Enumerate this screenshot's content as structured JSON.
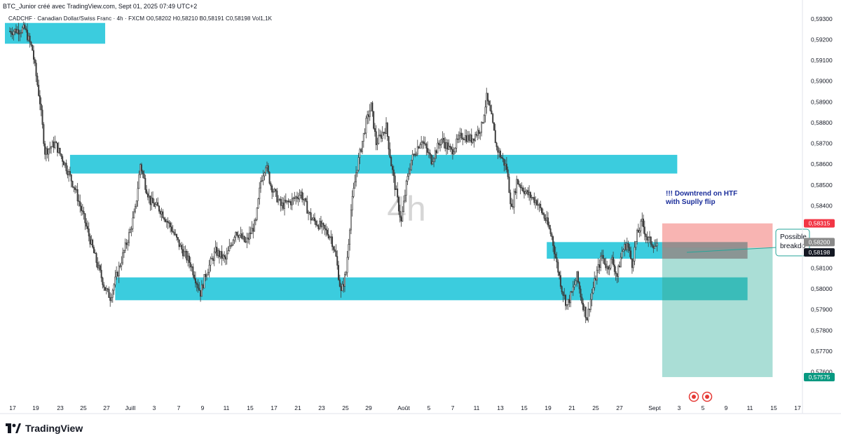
{
  "header": {
    "published_by": "BTC_Junior créé avec TradingView.com, Sept 01, 2025 07:49 UTC+2"
  },
  "legend": {
    "text": "CADCHF · Canadian Dollar/Swiss Franc · 4h · FXCM  O0,58202  H0,58210  B0,58191  C0,58198  Vol1,1K"
  },
  "watermark": {
    "text": "4h"
  },
  "brand": {
    "name": "TradingView",
    "logo_icon": "tradingview-logo-icon"
  },
  "colors": {
    "zone": "#26c6da",
    "candle": "#3a3a3a",
    "stop": "#f7a7a5",
    "target": "#9bd8cf",
    "gray_zone": "#8a8a8a",
    "annotation": "#1a2d9a",
    "price_tag_dark": "#131722",
    "price_tag_red": "#f23645",
    "price_tag_green": "#089981"
  },
  "chart_data": {
    "type": "candlestick",
    "symbol": "CADCHF",
    "name": "Canadian Dollar/Swiss Franc",
    "timeframe": "4h",
    "exchange": "FXCM",
    "last_ohlc": {
      "open": 0.58202,
      "high": 0.5821,
      "low": 0.58191,
      "close": 0.58198,
      "volume": "1,1K"
    },
    "ylim": [
      0.5745,
      0.5935
    ],
    "y_ticks": [
      "0,59300",
      "0,59200",
      "0,59100",
      "0,59000",
      "0,58900",
      "0,58800",
      "0,58700",
      "0,58600",
      "0,58500",
      "0,58400",
      "0,58100",
      "0,58000",
      "0,57900",
      "0,57800",
      "0,57700",
      "0,57600"
    ],
    "x_ticks": [
      "17",
      "19",
      "23",
      "25",
      "27",
      "Juill",
      "3",
      "7",
      "9",
      "11",
      "15",
      "17",
      "21",
      "23",
      "25",
      "29",
      "Août",
      "5",
      "7",
      "11",
      "13",
      "15",
      "19",
      "21",
      "25",
      "27",
      "Sept",
      "3",
      "5",
      "9",
      "11",
      "15",
      "17"
    ],
    "price_path": [
      [
        0,
        0.5924
      ],
      [
        3,
        0.5925
      ],
      [
        4.5,
        0.5915
      ],
      [
        6,
        0.589
      ],
      [
        7,
        0.5866
      ],
      [
        9,
        0.587
      ],
      [
        11,
        0.586
      ],
      [
        13,
        0.5848
      ],
      [
        15,
        0.5832
      ],
      [
        17,
        0.5815
      ],
      [
        19,
        0.58
      ],
      [
        20,
        0.5796
      ],
      [
        22,
        0.5812
      ],
      [
        24,
        0.5828
      ],
      [
        25,
        0.5838
      ],
      [
        26,
        0.586
      ],
      [
        27,
        0.585
      ],
      [
        28,
        0.5842
      ],
      [
        30,
        0.5838
      ],
      [
        32,
        0.583
      ],
      [
        34,
        0.582
      ],
      [
        36,
        0.5812
      ],
      [
        37,
        0.5805
      ],
      [
        38,
        0.5798
      ],
      [
        39,
        0.5807
      ],
      [
        41,
        0.5818
      ],
      [
        43,
        0.5814
      ],
      [
        45,
        0.5828
      ],
      [
        47,
        0.5822
      ],
      [
        49,
        0.5832
      ],
      [
        50,
        0.5852
      ],
      [
        51,
        0.586
      ],
      [
        52,
        0.585
      ],
      [
        54,
        0.584
      ],
      [
        56,
        0.5842
      ],
      [
        58,
        0.5846
      ],
      [
        60,
        0.5834
      ],
      [
        62,
        0.583
      ],
      [
        64,
        0.5825
      ],
      [
        65,
        0.5815
      ],
      [
        66,
        0.5798
      ],
      [
        67,
        0.5808
      ],
      [
        68,
        0.5838
      ],
      [
        69,
        0.5856
      ],
      [
        71,
        0.588
      ],
      [
        72,
        0.5888
      ],
      [
        73,
        0.587
      ],
      [
        74,
        0.5874
      ],
      [
        75,
        0.5878
      ],
      [
        76,
        0.586
      ],
      [
        77,
        0.5846
      ],
      [
        78,
        0.5832
      ],
      [
        79,
        0.585
      ],
      [
        80,
        0.5862
      ],
      [
        82,
        0.5872
      ],
      [
        84,
        0.5862
      ],
      [
        86,
        0.5872
      ],
      [
        88,
        0.5866
      ],
      [
        90,
        0.5874
      ],
      [
        92,
        0.5872
      ],
      [
        94,
        0.5878
      ],
      [
        95,
        0.5892
      ],
      [
        96,
        0.5882
      ],
      [
        97,
        0.5868
      ],
      [
        99,
        0.5858
      ],
      [
        100,
        0.5838
      ],
      [
        101,
        0.5852
      ],
      [
        103,
        0.5846
      ],
      [
        105,
        0.5842
      ],
      [
        107,
        0.5832
      ],
      [
        108,
        0.5825
      ],
      [
        109,
        0.5812
      ],
      [
        110,
        0.58
      ],
      [
        111,
        0.5792
      ],
      [
        112,
        0.5798
      ],
      [
        113,
        0.5806
      ],
      [
        114,
        0.5794
      ],
      [
        115,
        0.5786
      ],
      [
        116,
        0.5798
      ],
      [
        117,
        0.5808
      ],
      [
        118,
        0.5816
      ],
      [
        119,
        0.581
      ],
      [
        120,
        0.5814
      ],
      [
        121,
        0.5806
      ],
      [
        122,
        0.5818
      ],
      [
        123,
        0.5822
      ],
      [
        124,
        0.5812
      ],
      [
        125,
        0.5826
      ],
      [
        126,
        0.5832
      ],
      [
        127,
        0.5824
      ],
      [
        128,
        0.5822
      ],
      [
        129,
        0.582
      ]
    ],
    "zones": [
      {
        "from_index": -1,
        "to_index": 19,
        "top": 0.5928,
        "bottom": 0.5918
      },
      {
        "from_index": 12,
        "to_index": 133,
        "top": 0.58645,
        "bottom": 0.58555
      },
      {
        "from_index": 21,
        "to_index": 147,
        "top": 0.58055,
        "bottom": 0.57945
      },
      {
        "from_index": 107,
        "to_index": 147,
        "top": 0.58225,
        "bottom": 0.58145
      }
    ],
    "position": {
      "type": "short",
      "from_index": 130,
      "to_index": 152,
      "stop": 0.58315,
      "entry": 0.58198,
      "target": 0.57575
    },
    "annotation": {
      "text_line1": "!!! Downtrend on HTF",
      "text_line2": "with Suplly flip"
    },
    "callout": {
      "text_line1": "Possible",
      "text_line2": "breakdo"
    },
    "price_labels": {
      "stop": "0,58315",
      "level": "0,58200",
      "current": "0,58198",
      "target": "0,57575"
    }
  }
}
